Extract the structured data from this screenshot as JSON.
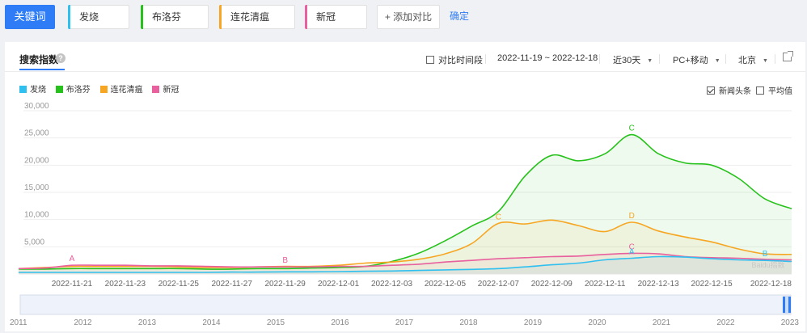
{
  "keywords": {
    "main_label": "关键词",
    "tags": [
      {
        "label": "发烧",
        "color": "#30c0f0"
      },
      {
        "label": "布洛芬",
        "color": "#26c21b"
      },
      {
        "label": "连花清瘟",
        "color": "#f6a623"
      },
      {
        "label": "新冠",
        "color": "#e8609e"
      }
    ],
    "add_label": "+ 添加对比",
    "confirm_label": "确定"
  },
  "panel": {
    "tab_title": "搜索指数",
    "help_icon": "help-circle-icon",
    "compare_period_label": "对比时间段",
    "date_range": "2022-11-19 ~ 2022-12-18",
    "period_select": "近30天",
    "device_select": "PC+移动",
    "region_select": "北京",
    "share_icon": "external-link-icon",
    "news_label": "新闻头条",
    "news_checked": true,
    "avg_label": "平均值",
    "avg_checked": false
  },
  "chart_data": {
    "type": "area",
    "ylim": [
      0,
      30000
    ],
    "y_ticks": [
      5000,
      10000,
      15000,
      20000,
      25000,
      30000
    ],
    "y_tick_labels": [
      "5,000",
      "10,000",
      "15,000",
      "20,000",
      "25,000",
      "30,000"
    ],
    "x_dates": [
      "2022-11-19",
      "2022-11-20",
      "2022-11-21",
      "2022-11-22",
      "2022-11-23",
      "2022-11-24",
      "2022-11-25",
      "2022-11-26",
      "2022-11-27",
      "2022-11-28",
      "2022-11-29",
      "2022-11-30",
      "2022-12-01",
      "2022-12-02",
      "2022-12-03",
      "2022-12-04",
      "2022-12-05",
      "2022-12-06",
      "2022-12-07",
      "2022-12-08",
      "2022-12-09",
      "2022-12-10",
      "2022-12-11",
      "2022-12-12",
      "2022-12-13",
      "2022-12-14",
      "2022-12-15",
      "2022-12-16",
      "2022-12-17",
      "2022-12-18"
    ],
    "x_tick_labels": [
      "2022-11-21",
      "2022-11-23",
      "2022-11-25",
      "2022-11-27",
      "2022-11-29",
      "2022-12-01",
      "2022-12-03",
      "2022-12-05",
      "2022-12-07",
      "2022-12-09",
      "2022-12-11",
      "2022-12-13",
      "2022-12-15",
      "2022-12-18"
    ],
    "series": [
      {
        "name": "发烧",
        "color": "#30c0f0",
        "values": [
          300,
          300,
          300,
          300,
          300,
          300,
          300,
          300,
          350,
          350,
          400,
          400,
          450,
          500,
          550,
          650,
          750,
          850,
          1000,
          1300,
          1700,
          2000,
          2600,
          2900,
          3200,
          3100,
          2800,
          2600,
          2500,
          2300
        ]
      },
      {
        "name": "布洛芬",
        "color": "#26c21b",
        "values": [
          900,
          900,
          1000,
          1000,
          1000,
          1000,
          1000,
          900,
          900,
          1000,
          1000,
          1100,
          1200,
          1400,
          2300,
          3800,
          6100,
          8800,
          11500,
          18000,
          21800,
          20800,
          22100,
          25600,
          22100,
          20400,
          20000,
          17600,
          13800,
          12000
        ]
      },
      {
        "name": "连花清瘟",
        "color": "#f6a623",
        "values": [
          1000,
          1200,
          1400,
          1400,
          1400,
          1400,
          1300,
          1200,
          1200,
          1300,
          1400,
          1400,
          1600,
          2000,
          2200,
          2700,
          3700,
          5600,
          9300,
          9200,
          9900,
          8900,
          7800,
          9500,
          7900,
          6800,
          5900,
          4600,
          3700,
          3600
        ]
      },
      {
        "name": "新冠",
        "color": "#e8609e",
        "values": [
          1000,
          1100,
          1600,
          1600,
          1600,
          1500,
          1500,
          1400,
          1300,
          1300,
          1300,
          1300,
          1400,
          1400,
          1600,
          1800,
          2200,
          2500,
          2800,
          3000,
          3200,
          3300,
          3600,
          3800,
          3700,
          3200,
          3000,
          2900,
          2700,
          2600
        ]
      }
    ],
    "annotations": [
      {
        "letter": "A",
        "series": "新冠",
        "date": "2022-11-21"
      },
      {
        "letter": "B",
        "series": "新冠",
        "date": "2022-11-29"
      },
      {
        "letter": "C",
        "series": "连花清瘟",
        "date": "2022-12-07"
      },
      {
        "letter": "C",
        "series": "布洛芬",
        "date": "2022-12-12"
      },
      {
        "letter": "D",
        "series": "连花清瘟",
        "date": "2022-12-12"
      },
      {
        "letter": "C",
        "series": "新冠",
        "date": "2022-12-12"
      },
      {
        "letter": "A",
        "series": "发烧",
        "date": "2022-12-12"
      },
      {
        "letter": "B",
        "series": "发烧",
        "date": "2022-12-17"
      }
    ],
    "watermark": "Baidu指数",
    "overview_years": [
      "2011",
      "2012",
      "2013",
      "2014",
      "2015",
      "2016",
      "2017",
      "2018",
      "2019",
      "2020",
      "2021",
      "2022",
      "2023"
    ]
  }
}
